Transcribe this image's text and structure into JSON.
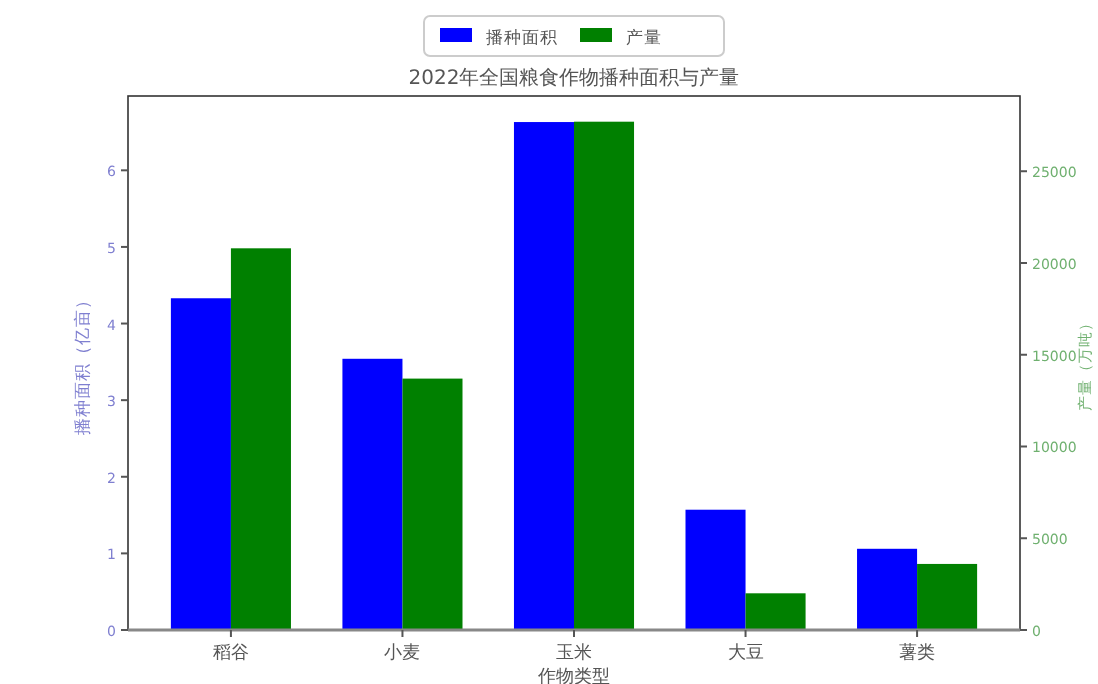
{
  "chart_data": {
    "type": "bar",
    "title": "2022年全国粮食作物播种面积与产量",
    "xlabel": "作物类型",
    "ylabel": "播种面积（亿亩）",
    "y2label": "产量（万吨）",
    "categories": [
      "稻谷",
      "小麦",
      "玉米",
      "大豆",
      "薯类"
    ],
    "series": [
      {
        "name": "播种面积",
        "color": "#0000ff",
        "values": [
          4.33,
          3.54,
          6.63,
          1.57,
          1.06
        ]
      },
      {
        "name": "产量",
        "color": "#008000",
        "axis": "y2",
        "values": [
          20800,
          13700,
          27700,
          2000,
          3600
        ]
      }
    ],
    "ylim": [
      0,
      6.97
    ],
    "yticks": [
      0,
      1,
      2,
      3,
      4,
      5,
      6
    ],
    "y2lim": [
      0,
      29100
    ],
    "y2ticks": [
      0,
      5000,
      10000,
      15000,
      20000,
      25000
    ],
    "legend": "top",
    "grid": false
  }
}
